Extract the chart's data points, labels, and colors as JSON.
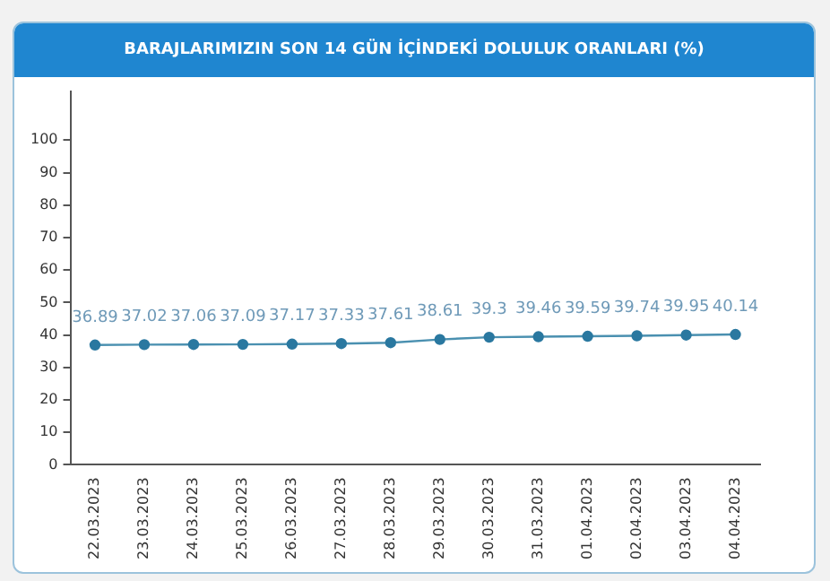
{
  "chart_data": {
    "type": "line",
    "title": "BARAJLARIMIZIN SON 14 GÜN İÇİNDEKİ DOLULUK ORANLARI (%)",
    "categories": [
      "22.03.2023",
      "23.03.2023",
      "24.03.2023",
      "25.03.2023",
      "26.03.2023",
      "27.03.2023",
      "28.03.2023",
      "29.03.2023",
      "30.03.2023",
      "31.03.2023",
      "01.04.2023",
      "02.04.2023",
      "03.04.2023",
      "04.04.2023"
    ],
    "series": [
      {
        "color": "#4a90b0",
        "values": [
          36.89,
          37.02,
          37.06,
          37.09,
          37.17,
          37.33,
          37.61,
          38.61,
          39.3,
          39.46,
          39.59,
          39.74,
          39.95,
          40.14
        ]
      }
    ],
    "ylim": [
      0,
      115
    ],
    "yticks": [
      0,
      10,
      20,
      30,
      40,
      50,
      60,
      70,
      80,
      90,
      100
    ],
    "marker": "circle",
    "grid": false,
    "legend": false,
    "data_labels": true
  }
}
